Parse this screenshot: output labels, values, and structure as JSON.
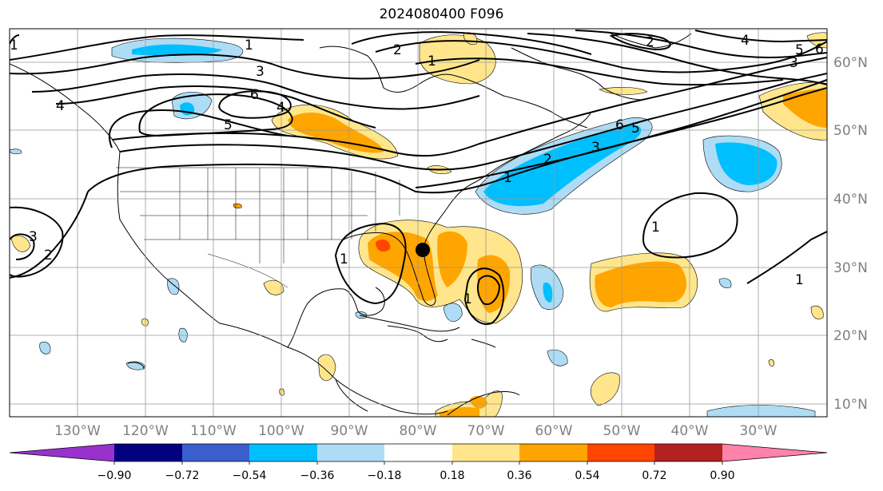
{
  "title": "2024080400 F096",
  "lat_labels": [
    "60°N",
    "50°N",
    "40°N",
    "30°N",
    "20°N",
    "10°N"
  ],
  "lon_labels": [
    "130°W",
    "120°W",
    "110°W",
    "100°W",
    "90°W",
    "80°W",
    "70°W",
    "60°W",
    "50°W",
    "40°W",
    "30°W"
  ],
  "colorbar": {
    "tick_labels": [
      "−0.90",
      "−0.72",
      "−0.54",
      "−0.36",
      "−0.18",
      "0.18",
      "0.36",
      "0.54",
      "0.72",
      "0.90"
    ],
    "colors": [
      "#9932cc",
      "#000080",
      "#3a5fcd",
      "#00bfff",
      "#afdcf5",
      "#ffffff",
      "#ffe68c",
      "#ffa500",
      "#ff4500",
      "#b22222",
      "#ff82ab"
    ]
  },
  "contour_labels": [
    "1",
    "3",
    "6",
    "5",
    "4",
    "2",
    "6",
    "5",
    "4",
    "3",
    "1",
    "1",
    "2",
    "3",
    "1",
    "1",
    "1",
    "2",
    "3",
    "5",
    "6",
    "4",
    "2",
    "1",
    "1"
  ],
  "marker": "storm-position-dot"
}
